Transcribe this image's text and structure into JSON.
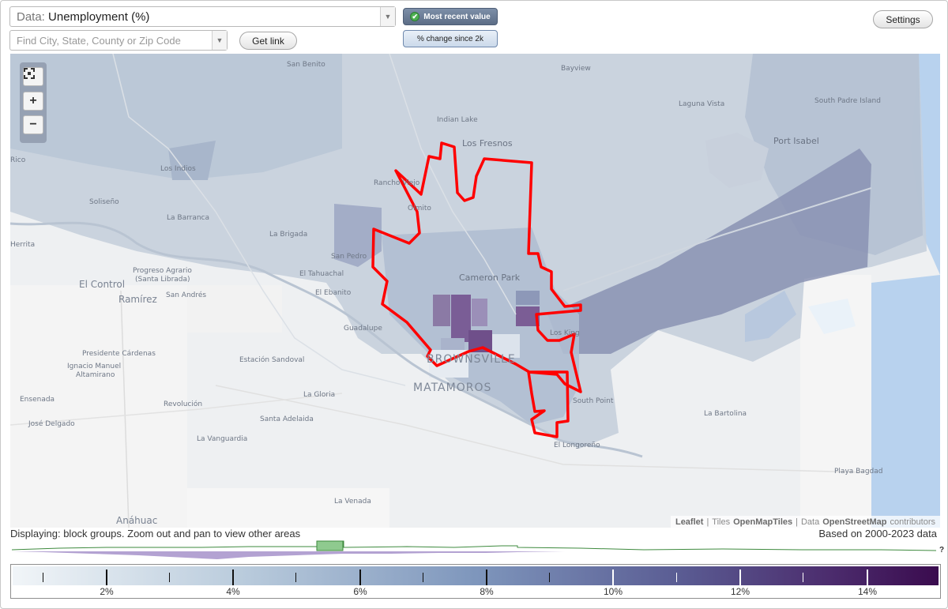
{
  "toolbar": {
    "data_prefix": "Data: ",
    "data_value": "Unemployment (%)",
    "search_placeholder": "Find City, State, County or Zip Code",
    "get_link_label": "Get link",
    "mode_recent_label": "Most recent value",
    "mode_change_label": "% change since 2k",
    "settings_label": "Settings"
  },
  "map": {
    "attribution": {
      "leaflet": "Leaflet",
      "sep1": "|",
      "tiles": "Tiles",
      "tiles_provider": "OpenMapTiles",
      "sep2": "|",
      "data": "Data",
      "data_provider": "OpenStreetMap",
      "contributors": "contributors"
    },
    "places": {
      "san_benito": "San Benito",
      "bayview": "Bayview",
      "laguna_vista": "Laguna Vista",
      "south_padre_island": "South Padre Island",
      "indian_lake": "Indian Lake",
      "los_fresnos": "Los Fresnos",
      "port_isabel": "Port Isabel",
      "rico": "Rico",
      "los_indios": "Los Indios",
      "rancho_viejo": "Rancho Viejo",
      "olmito": "Olmito",
      "soliseno": "Soliseño",
      "la_barranca": "La Barranca",
      "la_brigada": "La Brigada",
      "san_pedro": "San Pedro",
      "herrita": "Herrita",
      "progreso_agrario": "Progreso Agrario",
      "santa_librada": "(Santa Librada)",
      "el_tahuachal": "El Tahuachal",
      "cameron_park": "Cameron Park",
      "el_control": "El Control",
      "ramirez": "Ramírez",
      "san_andres": "San Andrés",
      "el_ebanito": "El Ebanito",
      "guadalupe": "Guadalupe",
      "los_king": "Los King",
      "presidente_cardenas": "Presidente Cárdenas",
      "ignacio_manuel": "Ignacio Manuel",
      "altamirano": "Altamirano",
      "estacion_sandoval": "Estación Sandoval",
      "brownsville": "BROWNSVILLE",
      "matamoros": "MATAMOROS",
      "ensenada": "Ensenada",
      "la_gloria": "La Gloria",
      "revolucion": "Revolución",
      "south_point": "South Point",
      "la_bartolina": "La Bartolina",
      "jose_delgado": "José Delgado",
      "santa_adelaida": "Santa Adelaida",
      "la_vanguardia": "La Vanguardia",
      "el_longoreno": "El Longoreño",
      "playa_bagdad": "Playa Bagdad",
      "la_venada": "La Venada",
      "anahuac": "Anáhuac"
    }
  },
  "footer": {
    "displaying": "Displaying: block groups. Zoom out and pan to view other areas",
    "based_on": "Based on 2000-2023 data",
    "unknown_marker": "?"
  },
  "legend": {
    "labels": [
      "2%",
      "4%",
      "6%",
      "8%",
      "10%",
      "12%",
      "14%"
    ],
    "gradient_colors": [
      "#f1f5f8",
      "#b9cbdc",
      "#7e96bc",
      "#5a5c93",
      "#4c2d6e",
      "#3a0b4e"
    ],
    "highlight_color": "#ff0000"
  }
}
